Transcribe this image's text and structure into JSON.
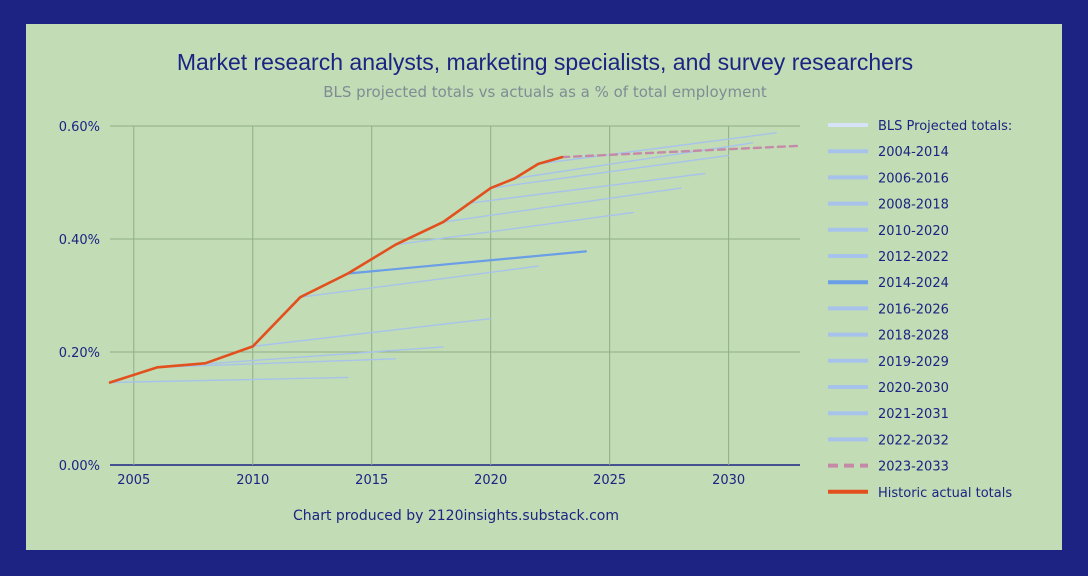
{
  "chart_data": {
    "type": "line",
    "title": "Market research analysts, marketing specialists, and survey researchers",
    "subtitle": "BLS projected totals vs actuals as a % of total employment",
    "credit": "Chart produced by 2120insights.substack.com",
    "xlim": [
      2004,
      2033
    ],
    "ylim": [
      0,
      0.6
    ],
    "x_ticks": [
      2005,
      2010,
      2015,
      2020,
      2025,
      2030
    ],
    "x_tick_labels": [
      "2005",
      "2010",
      "2015",
      "2020",
      "2025",
      "2030"
    ],
    "y_ticks": [
      0,
      0.2,
      0.4,
      0.6
    ],
    "y_tick_labels": [
      "0.00%",
      "0.20%",
      "0.40%",
      "0.60%"
    ],
    "grid": true,
    "legend_position": "right",
    "legend_header": "BLS Projected totals:",
    "colors": {
      "background": "#c2dcb6",
      "frame": "#1c2383",
      "projection": "#a7c3eb",
      "projection_2014": "#6a9ee6",
      "projection_2023": "#c58aa8",
      "historic": "#e2501e",
      "header_line": "#d6e2f5",
      "grid": "#8fae86",
      "text": "#1c2383"
    },
    "series": [
      {
        "name": "2004-2014",
        "x": [
          2004,
          2014
        ],
        "y": [
          0.146,
          0.155
        ]
      },
      {
        "name": "2006-2016",
        "x": [
          2006,
          2016
        ],
        "y": [
          0.173,
          0.188
        ]
      },
      {
        "name": "2008-2018",
        "x": [
          2008,
          2018
        ],
        "y": [
          0.179,
          0.209
        ]
      },
      {
        "name": "2010-2020",
        "x": [
          2010,
          2020
        ],
        "y": [
          0.21,
          0.259
        ]
      },
      {
        "name": "2012-2022",
        "x": [
          2012,
          2022
        ],
        "y": [
          0.297,
          0.352
        ]
      },
      {
        "name": "2014-2024",
        "x": [
          2014,
          2024
        ],
        "y": [
          0.339,
          0.378
        ]
      },
      {
        "name": "2016-2026",
        "x": [
          2016,
          2026
        ],
        "y": [
          0.39,
          0.447
        ]
      },
      {
        "name": "2018-2028",
        "x": [
          2018,
          2028
        ],
        "y": [
          0.43,
          0.49
        ]
      },
      {
        "name": "2019-2029",
        "x": [
          2019,
          2029
        ],
        "y": [
          0.463,
          0.516
        ]
      },
      {
        "name": "2020-2030",
        "x": [
          2020,
          2030
        ],
        "y": [
          0.49,
          0.548
        ]
      },
      {
        "name": "2021-2031",
        "x": [
          2021,
          2031
        ],
        "y": [
          0.507,
          0.57
        ]
      },
      {
        "name": "2022-2032",
        "x": [
          2022,
          2032
        ],
        "y": [
          0.533,
          0.588
        ]
      },
      {
        "name": "2023-2033",
        "x": [
          2023,
          2033
        ],
        "y": [
          0.545,
          0.565
        ]
      },
      {
        "name": "Historic actual totals",
        "x": [
          2004,
          2006,
          2008,
          2010,
          2012,
          2014,
          2016,
          2018,
          2020,
          2021,
          2022,
          2023
        ],
        "y": [
          0.146,
          0.173,
          0.18,
          0.21,
          0.297,
          0.339,
          0.39,
          0.43,
          0.49,
          0.507,
          0.533,
          0.545
        ]
      }
    ]
  }
}
